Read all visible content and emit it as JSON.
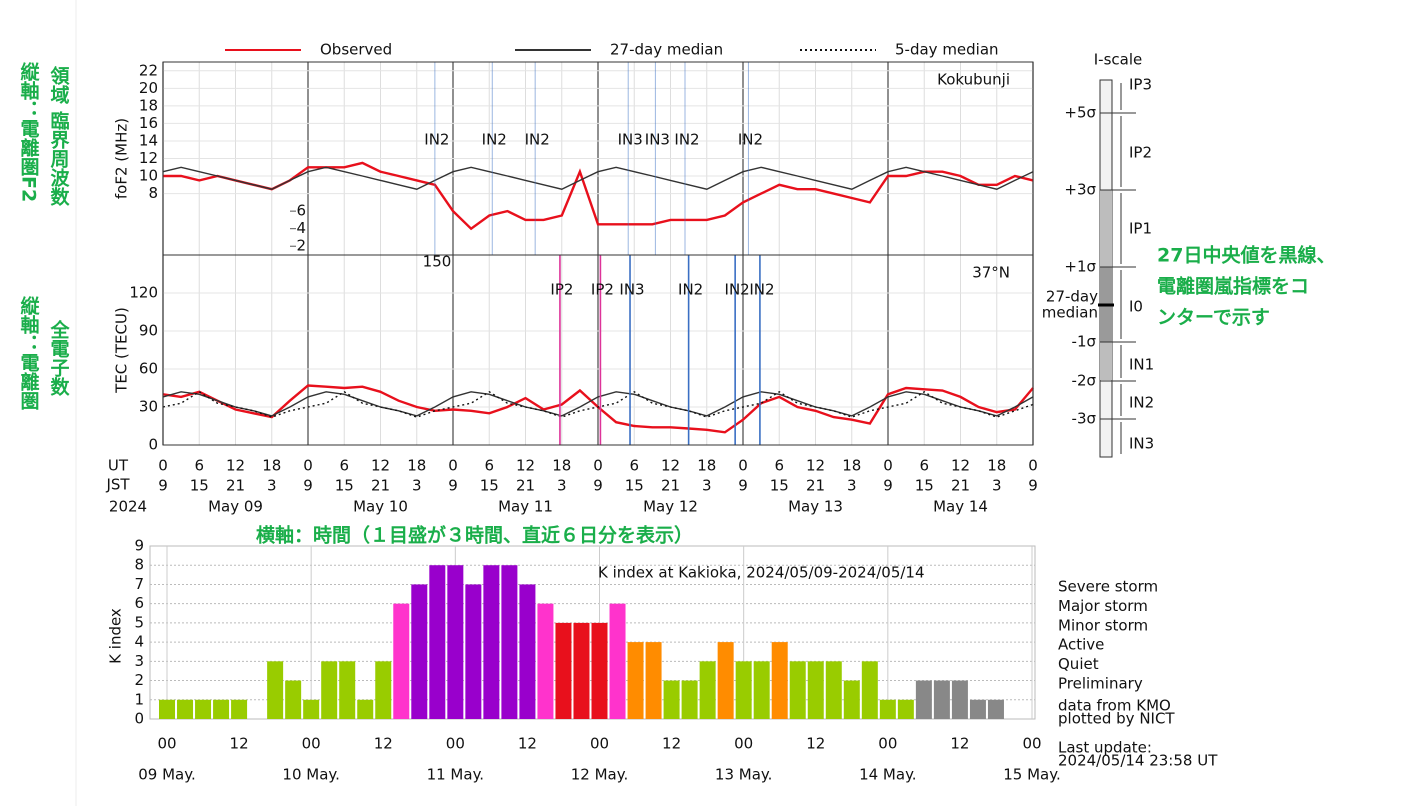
{
  "chart_data": [
    {
      "type": "line",
      "ylabel": "foF2 (MHz)",
      "station": "Kokubunji",
      "x": [
        0,
        3,
        6,
        9,
        12,
        15,
        18,
        21,
        24,
        27,
        30,
        33,
        36,
        39,
        42,
        45,
        48,
        51,
        54,
        57,
        60,
        63,
        66,
        69,
        72,
        75,
        78,
        81,
        84,
        87,
        90,
        93,
        96,
        99,
        102,
        105,
        108,
        111,
        114,
        117,
        120,
        123,
        126,
        129,
        132,
        135,
        138,
        141,
        144
      ],
      "xlim": [
        0,
        144
      ],
      "ylim": [
        1,
        23
      ],
      "yticks": [
        8,
        10,
        12,
        14,
        16,
        18,
        20,
        22
      ],
      "yticks_inner": [
        6,
        4,
        2
      ],
      "series": [
        {
          "name": "Observed",
          "color": "#e8101c",
          "values": [
            10,
            10,
            9.5,
            10,
            9.5,
            9,
            8.5,
            9.5,
            11,
            11,
            11,
            11.5,
            10.5,
            10,
            9.5,
            9,
            6,
            4,
            5.5,
            6,
            5,
            5,
            5.5,
            10.5,
            4.5,
            4.5,
            4.5,
            4.5,
            5,
            5,
            5,
            5.5,
            7,
            8,
            9,
            8.5,
            8.5,
            8,
            7.5,
            7,
            10,
            10,
            10.5,
            10.5,
            10,
            9,
            9,
            10,
            9.5
          ]
        },
        {
          "name": "27-day median",
          "color": "#333333",
          "values": [
            10.5,
            11,
            10.5,
            10,
            9.5,
            9,
            8.5,
            9.5,
            10.5,
            11,
            10.5,
            10,
            9.5,
            9,
            8.5,
            9.5,
            10.5,
            11,
            10.5,
            10,
            9.5,
            9,
            8.5,
            9.5,
            10.5,
            11,
            10.5,
            10,
            9.5,
            9,
            8.5,
            9.5,
            10.5,
            11,
            10.5,
            10,
            9.5,
            9,
            8.5,
            9.5,
            10.5,
            11,
            10.5,
            10,
            9.5,
            9,
            8.5,
            9.5,
            10.5
          ]
        }
      ],
      "events": [
        {
          "x": 45,
          "label": "IN2",
          "color": "#3a6fc4"
        },
        {
          "x": 54.5,
          "label": "IN2",
          "color": "#3a6fc4"
        },
        {
          "x": 61.6,
          "label": "IN2",
          "color": "#3a6fc4"
        },
        {
          "x": 77,
          "label": "IN3",
          "color": "#3a6fc4"
        },
        {
          "x": 81.5,
          "label": "IN3",
          "color": "#3a6fc4"
        },
        {
          "x": 86.4,
          "label": "IN2",
          "color": "#3a6fc4"
        },
        {
          "x": 96.9,
          "label": "IN2",
          "color": "#3a6fc4"
        }
      ]
    },
    {
      "type": "line",
      "ylabel": "TEC (TECU)",
      "station": "37°N",
      "scale_max_label": 150,
      "x": [
        0,
        3,
        6,
        9,
        12,
        15,
        18,
        21,
        24,
        27,
        30,
        33,
        36,
        39,
        42,
        45,
        48,
        51,
        54,
        57,
        60,
        63,
        66,
        69,
        72,
        75,
        78,
        81,
        84,
        87,
        90,
        93,
        96,
        99,
        102,
        105,
        108,
        111,
        114,
        117,
        120,
        123,
        126,
        129,
        132,
        135,
        138,
        141,
        144
      ],
      "xlim": [
        0,
        144
      ],
      "ylim": [
        0,
        150
      ],
      "yticks": [
        0,
        30,
        60,
        90,
        120
      ],
      "xticks": [
        0,
        6,
        12,
        18,
        {
          "value": 24,
          "label": "0"
        },
        {
          "value": 30,
          "label": "6"
        },
        {
          "value": 36,
          "label": "12"
        },
        {
          "value": 42,
          "label": "18"
        },
        {
          "value": 48,
          "label": "0"
        },
        {
          "value": 54,
          "label": "6"
        },
        {
          "value": 60,
          "label": "12"
        },
        {
          "value": 66,
          "label": "18"
        },
        {
          "value": 72,
          "label": "0"
        },
        {
          "value": 78,
          "label": "6"
        },
        {
          "value": 84,
          "label": "12"
        },
        {
          "value": 90,
          "label": "18"
        },
        {
          "value": 96,
          "label": "0"
        },
        {
          "value": 102,
          "label": "6"
        },
        {
          "value": 108,
          "label": "12"
        },
        {
          "value": 114,
          "label": "18"
        },
        {
          "value": 120,
          "label": "0"
        },
        {
          "value": 126,
          "label": "6"
        },
        {
          "value": 132,
          "label": "12"
        },
        {
          "value": 138,
          "label": "18"
        },
        {
          "value": 144,
          "label": "0"
        }
      ],
      "ut_label": "UT",
      "jst_label": "JST",
      "year": "2024",
      "jst_ticks": [
        "9",
        "15",
        "21",
        "3",
        "9",
        "15",
        "21",
        "3",
        "9",
        "15",
        "21",
        "3",
        "9",
        "15",
        "21",
        "3",
        "9",
        "15",
        "21",
        "3",
        "9",
        "15",
        "21",
        "3",
        "9"
      ],
      "dates": [
        "May 09",
        "May 10",
        "May 11",
        "May 12",
        "May 13",
        "May 14"
      ],
      "series": [
        {
          "color": "#e8101c",
          "values": [
            40,
            38,
            42,
            35,
            28,
            25,
            22,
            35,
            47,
            46,
            45,
            46,
            42,
            35,
            30,
            27,
            28,
            27,
            25,
            30,
            37,
            28,
            32,
            43,
            30,
            18,
            15,
            14,
            14,
            13,
            12,
            10,
            20,
            33,
            38,
            30,
            27,
            22,
            20,
            17,
            40,
            45,
            44,
            43,
            38,
            30,
            26,
            28,
            45
          ]
        },
        {
          "color": "#333333",
          "values": [
            38,
            42,
            40,
            35,
            30,
            27,
            23,
            30,
            38,
            42,
            40,
            35,
            30,
            27,
            23,
            30,
            38,
            42,
            40,
            35,
            30,
            27,
            23,
            30,
            38,
            42,
            40,
            35,
            30,
            27,
            23,
            30,
            38,
            42,
            40,
            35,
            30,
            27,
            23,
            30,
            38,
            42,
            40,
            35,
            30,
            27,
            23,
            30,
            38
          ]
        },
        {
          "name": "5-day median",
          "color": "#111111",
          "values": [
            30,
            33,
            42,
            33,
            30,
            27,
            22,
            27,
            30,
            33,
            42,
            33,
            30,
            27,
            22,
            27,
            30,
            33,
            42,
            33,
            30,
            27,
            22,
            27,
            30,
            33,
            42,
            33,
            30,
            27,
            22,
            27,
            30,
            33,
            42,
            33,
            30,
            27,
            22,
            27,
            30,
            33,
            42,
            33,
            30,
            27,
            22,
            27,
            32
          ]
        }
      ],
      "events": [
        {
          "x": 65.7,
          "label": "IP2",
          "color": "#dd3399"
        },
        {
          "x": 72.4,
          "label": "IP2",
          "color": "#dd3399"
        },
        {
          "x": 77.3,
          "label": "IN3",
          "color": "#3a6fc4"
        },
        {
          "x": 87,
          "label": "IN2",
          "color": "#3a6fc4"
        },
        {
          "x": 94.7,
          "label": "IN2",
          "color": "#3a6fc4"
        },
        {
          "x": 98.8,
          "label": "IN2",
          "color": "#3a6fc4"
        }
      ]
    },
    {
      "type": "bar",
      "title": "K index at Kakioka, 2024/05/09-2024/05/14",
      "ylabel": "K index",
      "grid": true,
      "x": [
        0,
        3,
        6,
        9,
        12,
        15,
        18,
        21,
        24,
        27,
        30,
        33,
        36,
        39,
        42,
        45,
        48,
        51,
        54,
        57,
        60,
        63,
        66,
        69,
        72,
        75,
        78,
        81,
        84,
        87,
        90,
        93,
        96,
        99,
        102,
        105,
        108,
        111,
        114,
        117,
        120,
        123,
        126,
        129,
        132,
        135,
        138
      ],
      "values": [
        1,
        1,
        1,
        1,
        1,
        0,
        3,
        2,
        1,
        3,
        3,
        1,
        3,
        6,
        7,
        8,
        8,
        7,
        8,
        8,
        7,
        6,
        5,
        5,
        5,
        6,
        4,
        4,
        2,
        2,
        3,
        4,
        3,
        3,
        4,
        3,
        3,
        3,
        2,
        3,
        1,
        1,
        2,
        2,
        2,
        1,
        1
      ],
      "colors": [
        "#99cc00",
        "#99cc00",
        "#99cc00",
        "#99cc00",
        "#99cc00",
        "#99cc00",
        "#99cc00",
        "#99cc00",
        "#99cc00",
        "#99cc00",
        "#99cc00",
        "#99cc00",
        "#99cc00",
        "#ff33cc",
        "#9900cc",
        "#9900cc",
        "#9900cc",
        "#9900cc",
        "#9900cc",
        "#9900cc",
        "#9900cc",
        "#ff33cc",
        "#e8101c",
        "#e8101c",
        "#e8101c",
        "#ff33cc",
        "#ff8c00",
        "#ff8c00",
        "#99cc00",
        "#99cc00",
        "#99cc00",
        "#ff8c00",
        "#99cc00",
        "#99cc00",
        "#ff8c00",
        "#99cc00",
        "#99cc00",
        "#99cc00",
        "#99cc00",
        "#99cc00",
        "#99cc00",
        "#99cc00",
        "#888888",
        "#888888",
        "#888888",
        "#888888",
        "#888888"
      ],
      "xlim": [
        0,
        144
      ],
      "ylim": [
        0,
        9
      ],
      "yticks": [
        0,
        1,
        2,
        3,
        4,
        5,
        6,
        7,
        8,
        9
      ],
      "xticks": [
        {
          "value": 0,
          "label": "00"
        },
        12,
        {
          "value": 24,
          "label": "00"
        },
        {
          "value": 36,
          "label": "12"
        },
        {
          "value": 48,
          "label": "00"
        },
        {
          "value": 60,
          "label": "12"
        },
        {
          "value": 72,
          "label": "00"
        },
        {
          "value": 84,
          "label": "12"
        },
        {
          "value": 96,
          "label": "00"
        },
        {
          "value": 108,
          "label": "12"
        },
        {
          "value": 120,
          "label": "00"
        },
        {
          "value": 132,
          "label": "12"
        },
        {
          "value": 144,
          "label": "00"
        }
      ],
      "date_labels": [
        "09 May.",
        "10 May.",
        "11 May.",
        "12 May.",
        "13 May.",
        "14 May.",
        "15 May."
      ],
      "legend": [
        {
          "name": "Severe storm",
          "color": "#9900cc"
        },
        {
          "name": "Major storm",
          "color": "#ff33cc"
        },
        {
          "name": "Minor storm",
          "color": "#e8101c"
        },
        {
          "name": "Active",
          "color": "#ff8c00"
        },
        {
          "name": "Quiet",
          "color": "#99cc00"
        },
        {
          "name": "Preliminary",
          "color": "#888888"
        }
      ],
      "notes": [
        "data from KMO",
        "plotted by NICT"
      ],
      "last_update": [
        "Last update:",
        "2024/05/14 23:58 UT"
      ]
    }
  ],
  "i_scale": {
    "title": "I-scale",
    "levels": [
      "+5σ",
      "+3σ",
      "+1σ",
      "-1σ",
      "-2σ",
      "-3σ"
    ],
    "median_label": [
      "27-day",
      "median"
    ],
    "indices": [
      "IP3",
      "IP2",
      "IP1",
      "I0",
      "IN1",
      "IN2",
      "IN3"
    ]
  },
  "annotations_jp": {
    "fof2_axis": [
      "縦軸：電離圏F2",
      "領域 臨界周波数"
    ],
    "tec_axis": [
      "縦軸：電離圏",
      "全電子数"
    ],
    "time_axis": "横軸：時間（１目盛が３時間、直近６日分を表示）",
    "median": [
      "27日中央値を黒線、",
      "電離圏嵐指標をコ",
      "ンターで示す"
    ]
  }
}
